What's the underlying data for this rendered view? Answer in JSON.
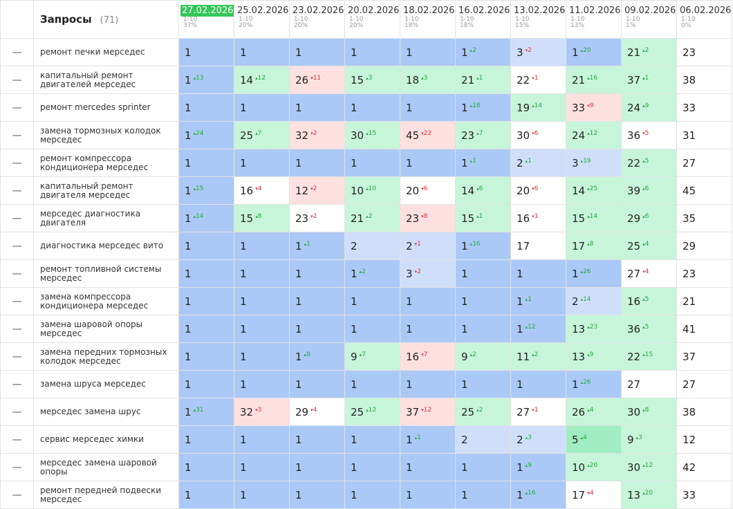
{
  "header": {
    "title": "Запросы",
    "count": "(71)"
  },
  "columns": [
    {
      "date": "27.02.2026",
      "range": "1-10",
      "pct": "37%",
      "current": true
    },
    {
      "date": "25.02.2026",
      "range": "1-10",
      "pct": "20%"
    },
    {
      "date": "23.02.2026",
      "range": "1-10",
      "pct": "20%"
    },
    {
      "date": "20.02.2026",
      "range": "1-10",
      "pct": "20%"
    },
    {
      "date": "18.02.2026",
      "range": "1-10",
      "pct": "18%"
    },
    {
      "date": "16.02.2026",
      "range": "1-10",
      "pct": "18%"
    },
    {
      "date": "13.02.2026",
      "range": "1-10",
      "pct": "15%"
    },
    {
      "date": "11.02.2026",
      "range": "1-10",
      "pct": "13%"
    },
    {
      "date": "09.02.2026",
      "range": "1-10",
      "pct": "1%"
    },
    {
      "date": "06.02.2026",
      "range": "1-10",
      "pct": "0%"
    }
  ],
  "rows": [
    {
      "query": "ремонт печки мерседес",
      "cells": [
        {
          "p": 1,
          "bg": "b"
        },
        {
          "p": 1,
          "bg": "b"
        },
        {
          "p": 1,
          "bg": "b"
        },
        {
          "p": 1,
          "bg": "b"
        },
        {
          "p": 1,
          "bg": "b"
        },
        {
          "p": 1,
          "c": 2,
          "d": "up",
          "bg": "b"
        },
        {
          "p": 3,
          "c": 2,
          "d": "down",
          "bg": "lb"
        },
        {
          "p": 1,
          "c": 20,
          "d": "up",
          "bg": "b"
        },
        {
          "p": 21,
          "c": 2,
          "d": "up",
          "bg": "g"
        },
        {
          "p": 23,
          "bg": "w"
        }
      ]
    },
    {
      "query": "капитальный ремонт двигателей мерседес",
      "cells": [
        {
          "p": 1,
          "c": 13,
          "d": "up",
          "bg": "b"
        },
        {
          "p": 14,
          "c": 12,
          "d": "up",
          "bg": "g"
        },
        {
          "p": 26,
          "c": 11,
          "d": "down",
          "bg": "r"
        },
        {
          "p": 15,
          "c": 3,
          "d": "up",
          "bg": "g"
        },
        {
          "p": 18,
          "c": 3,
          "d": "up",
          "bg": "g"
        },
        {
          "p": 21,
          "c": 1,
          "d": "up",
          "bg": "g"
        },
        {
          "p": 22,
          "c": 1,
          "d": "down",
          "bg": "w"
        },
        {
          "p": 21,
          "c": 16,
          "d": "up",
          "bg": "g"
        },
        {
          "p": 37,
          "c": 1,
          "d": "up",
          "bg": "g"
        },
        {
          "p": 38,
          "bg": "w"
        }
      ]
    },
    {
      "query": "ремонт mercedes sprinter",
      "cells": [
        {
          "p": 1,
          "bg": "b"
        },
        {
          "p": 1,
          "bg": "b"
        },
        {
          "p": 1,
          "bg": "b"
        },
        {
          "p": 1,
          "bg": "b"
        },
        {
          "p": 1,
          "bg": "b"
        },
        {
          "p": 1,
          "c": 18,
          "d": "up",
          "bg": "b"
        },
        {
          "p": 19,
          "c": 14,
          "d": "up",
          "bg": "g"
        },
        {
          "p": 33,
          "c": 9,
          "d": "down",
          "bg": "r"
        },
        {
          "p": 24,
          "c": 9,
          "d": "up",
          "bg": "g"
        },
        {
          "p": 33,
          "bg": "w"
        }
      ]
    },
    {
      "query": "замена тормозных колодок мерседес",
      "cells": [
        {
          "p": 1,
          "c": 24,
          "d": "up",
          "bg": "b"
        },
        {
          "p": 25,
          "c": 7,
          "d": "up",
          "bg": "g"
        },
        {
          "p": 32,
          "c": 2,
          "d": "down",
          "bg": "r"
        },
        {
          "p": 30,
          "c": 15,
          "d": "up",
          "bg": "g"
        },
        {
          "p": 45,
          "c": 22,
          "d": "down",
          "bg": "r"
        },
        {
          "p": 23,
          "c": 7,
          "d": "up",
          "bg": "g"
        },
        {
          "p": 30,
          "c": 6,
          "d": "down",
          "bg": "w"
        },
        {
          "p": 24,
          "c": 12,
          "d": "up",
          "bg": "g"
        },
        {
          "p": 36,
          "c": 5,
          "d": "down",
          "bg": "w"
        },
        {
          "p": 31,
          "bg": "w"
        }
      ]
    },
    {
      "query": "ремонт компрессора кондиционера мерседес",
      "cells": [
        {
          "p": 1,
          "bg": "b"
        },
        {
          "p": 1,
          "bg": "b"
        },
        {
          "p": 1,
          "bg": "b"
        },
        {
          "p": 1,
          "bg": "b"
        },
        {
          "p": 1,
          "bg": "b"
        },
        {
          "p": 1,
          "c": 1,
          "d": "up",
          "bg": "b"
        },
        {
          "p": 2,
          "c": 1,
          "d": "up",
          "bg": "lb"
        },
        {
          "p": 3,
          "c": 19,
          "d": "up",
          "bg": "lb"
        },
        {
          "p": 22,
          "c": 5,
          "d": "up",
          "bg": "g"
        },
        {
          "p": 27,
          "bg": "w"
        }
      ]
    },
    {
      "query": "капитальный ремонт двигателя мерседес",
      "cells": [
        {
          "p": 1,
          "c": 15,
          "d": "up",
          "bg": "b"
        },
        {
          "p": 16,
          "c": 4,
          "d": "down",
          "bg": "w"
        },
        {
          "p": 12,
          "c": 2,
          "d": "down",
          "bg": "r"
        },
        {
          "p": 10,
          "c": 10,
          "d": "up",
          "bg": "g"
        },
        {
          "p": 20,
          "c": 6,
          "d": "down",
          "bg": "w"
        },
        {
          "p": 14,
          "c": 6,
          "d": "up",
          "bg": "g"
        },
        {
          "p": 20,
          "c": 6,
          "d": "down",
          "bg": "w"
        },
        {
          "p": 14,
          "c": 25,
          "d": "up",
          "bg": "g"
        },
        {
          "p": 39,
          "c": 6,
          "d": "up",
          "bg": "g"
        },
        {
          "p": 45,
          "bg": "w"
        }
      ]
    },
    {
      "query": "мерседес диагностика двигателя",
      "cells": [
        {
          "p": 1,
          "c": 14,
          "d": "up",
          "bg": "b"
        },
        {
          "p": 15,
          "c": 8,
          "d": "up",
          "bg": "g"
        },
        {
          "p": 23,
          "c": 2,
          "d": "down",
          "bg": "w"
        },
        {
          "p": 21,
          "c": 2,
          "d": "up",
          "bg": "g"
        },
        {
          "p": 23,
          "c": 8,
          "d": "down",
          "bg": "r"
        },
        {
          "p": 15,
          "c": 1,
          "d": "up",
          "bg": "g"
        },
        {
          "p": 16,
          "c": 1,
          "d": "down",
          "bg": "w"
        },
        {
          "p": 15,
          "c": 14,
          "d": "up",
          "bg": "g"
        },
        {
          "p": 29,
          "c": 6,
          "d": "up",
          "bg": "g"
        },
        {
          "p": 35,
          "bg": "w"
        }
      ]
    },
    {
      "query": "диагностика мерседес вито",
      "cells": [
        {
          "p": 1,
          "bg": "b"
        },
        {
          "p": 1,
          "bg": "b"
        },
        {
          "p": 1,
          "c": 1,
          "d": "up",
          "bg": "b"
        },
        {
          "p": 2,
          "bg": "lb"
        },
        {
          "p": 2,
          "c": 1,
          "d": "down",
          "bg": "lb"
        },
        {
          "p": 1,
          "c": 16,
          "d": "up",
          "bg": "b"
        },
        {
          "p": 17,
          "bg": "w"
        },
        {
          "p": 17,
          "c": 8,
          "d": "up",
          "bg": "g"
        },
        {
          "p": 25,
          "c": 4,
          "d": "up",
          "bg": "g"
        },
        {
          "p": 29,
          "bg": "w"
        }
      ]
    },
    {
      "query": "ремонт топливной системы мерседес",
      "cells": [
        {
          "p": 1,
          "bg": "b"
        },
        {
          "p": 1,
          "bg": "b"
        },
        {
          "p": 1,
          "bg": "b"
        },
        {
          "p": 1,
          "c": 2,
          "d": "up",
          "bg": "b"
        },
        {
          "p": 3,
          "c": 2,
          "d": "down",
          "bg": "lb"
        },
        {
          "p": 1,
          "bg": "b"
        },
        {
          "p": 1,
          "bg": "b"
        },
        {
          "p": 1,
          "c": 26,
          "d": "up",
          "bg": "b"
        },
        {
          "p": 27,
          "c": 4,
          "d": "down",
          "bg": "w"
        },
        {
          "p": 23,
          "bg": "w"
        }
      ]
    },
    {
      "query": "замена компрессора кондиционера мерседес",
      "cells": [
        {
          "p": 1,
          "bg": "b"
        },
        {
          "p": 1,
          "bg": "b"
        },
        {
          "p": 1,
          "bg": "b"
        },
        {
          "p": 1,
          "bg": "b"
        },
        {
          "p": 1,
          "bg": "b"
        },
        {
          "p": 1,
          "bg": "b"
        },
        {
          "p": 1,
          "c": 1,
          "d": "up",
          "bg": "b"
        },
        {
          "p": 2,
          "c": 14,
          "d": "up",
          "bg": "lb"
        },
        {
          "p": 16,
          "c": 5,
          "d": "up",
          "bg": "g"
        },
        {
          "p": 21,
          "bg": "w"
        }
      ]
    },
    {
      "query": "замена шаровой опоры мерседес",
      "cells": [
        {
          "p": 1,
          "bg": "b"
        },
        {
          "p": 1,
          "bg": "b"
        },
        {
          "p": 1,
          "bg": "b"
        },
        {
          "p": 1,
          "bg": "b"
        },
        {
          "p": 1,
          "bg": "b"
        },
        {
          "p": 1,
          "bg": "b"
        },
        {
          "p": 1,
          "c": 12,
          "d": "up",
          "bg": "b"
        },
        {
          "p": 13,
          "c": 23,
          "d": "up",
          "bg": "g"
        },
        {
          "p": 36,
          "c": 5,
          "d": "up",
          "bg": "g"
        },
        {
          "p": 41,
          "bg": "w"
        }
      ]
    },
    {
      "query": "замена передних тормозных колодок мерседес",
      "cells": [
        {
          "p": 1,
          "bg": "b"
        },
        {
          "p": 1,
          "bg": "b"
        },
        {
          "p": 1,
          "c": 8,
          "d": "up",
          "bg": "b"
        },
        {
          "p": 9,
          "c": 7,
          "d": "up",
          "bg": "g"
        },
        {
          "p": 16,
          "c": 7,
          "d": "down",
          "bg": "r"
        },
        {
          "p": 9,
          "c": 2,
          "d": "up",
          "bg": "g"
        },
        {
          "p": 11,
          "c": 2,
          "d": "up",
          "bg": "g"
        },
        {
          "p": 13,
          "c": 9,
          "d": "up",
          "bg": "g"
        },
        {
          "p": 22,
          "c": 15,
          "d": "up",
          "bg": "g"
        },
        {
          "p": 37,
          "bg": "w"
        }
      ]
    },
    {
      "query": "замена шруса мерседес",
      "cells": [
        {
          "p": 1,
          "bg": "b"
        },
        {
          "p": 1,
          "bg": "b"
        },
        {
          "p": 1,
          "bg": "b"
        },
        {
          "p": 1,
          "bg": "b"
        },
        {
          "p": 1,
          "bg": "b"
        },
        {
          "p": 1,
          "bg": "b"
        },
        {
          "p": 1,
          "bg": "b"
        },
        {
          "p": 1,
          "c": 26,
          "d": "up",
          "bg": "b"
        },
        {
          "p": 27,
          "bg": "w"
        },
        {
          "p": 27,
          "bg": "w"
        }
      ]
    },
    {
      "query": "мерседес замена шрус",
      "cells": [
        {
          "p": 1,
          "c": 31,
          "d": "up",
          "bg": "b"
        },
        {
          "p": 32,
          "c": 3,
          "d": "down",
          "bg": "r"
        },
        {
          "p": 29,
          "c": 4,
          "d": "down",
          "bg": "w"
        },
        {
          "p": 25,
          "c": 12,
          "d": "up",
          "bg": "g"
        },
        {
          "p": 37,
          "c": 12,
          "d": "down",
          "bg": "r"
        },
        {
          "p": 25,
          "c": 2,
          "d": "up",
          "bg": "g"
        },
        {
          "p": 27,
          "c": 1,
          "d": "down",
          "bg": "w"
        },
        {
          "p": 26,
          "c": 4,
          "d": "up",
          "bg": "g"
        },
        {
          "p": 30,
          "c": 8,
          "d": "up",
          "bg": "g"
        },
        {
          "p": 38,
          "bg": "w"
        }
      ]
    },
    {
      "query": "сервис мерседес химки",
      "cells": [
        {
          "p": 1,
          "bg": "b"
        },
        {
          "p": 1,
          "bg": "b"
        },
        {
          "p": 1,
          "bg": "b"
        },
        {
          "p": 1,
          "bg": "b"
        },
        {
          "p": 1,
          "c": 1,
          "d": "up",
          "bg": "b"
        },
        {
          "p": 2,
          "bg": "lb"
        },
        {
          "p": 2,
          "c": 3,
          "d": "up",
          "bg": "lb"
        },
        {
          "p": 5,
          "c": 4,
          "d": "up",
          "bg": "dg"
        },
        {
          "p": 9,
          "c": 3,
          "d": "up",
          "bg": "g"
        },
        {
          "p": 12,
          "bg": "w"
        }
      ]
    },
    {
      "query": "мерседес замена шаровой опоры",
      "cells": [
        {
          "p": 1,
          "bg": "b"
        },
        {
          "p": 1,
          "bg": "b"
        },
        {
          "p": 1,
          "bg": "b"
        },
        {
          "p": 1,
          "bg": "b"
        },
        {
          "p": 1,
          "bg": "b"
        },
        {
          "p": 1,
          "bg": "b"
        },
        {
          "p": 1,
          "c": 9,
          "d": "up",
          "bg": "b"
        },
        {
          "p": 10,
          "c": 20,
          "d": "up",
          "bg": "g"
        },
        {
          "p": 30,
          "c": 12,
          "d": "up",
          "bg": "g"
        },
        {
          "p": 42,
          "bg": "w"
        }
      ]
    },
    {
      "query": "ремонт передней подвески мерседес",
      "cells": [
        {
          "p": 1,
          "bg": "b"
        },
        {
          "p": 1,
          "bg": "b"
        },
        {
          "p": 1,
          "bg": "b"
        },
        {
          "p": 1,
          "bg": "b"
        },
        {
          "p": 1,
          "bg": "b"
        },
        {
          "p": 1,
          "bg": "b"
        },
        {
          "p": 1,
          "c": 16,
          "d": "up",
          "bg": "b"
        },
        {
          "p": 17,
          "c": 4,
          "d": "down",
          "bg": "w"
        },
        {
          "p": 13,
          "c": 20,
          "d": "up",
          "bg": "g"
        },
        {
          "p": 33,
          "bg": "w"
        }
      ]
    }
  ]
}
